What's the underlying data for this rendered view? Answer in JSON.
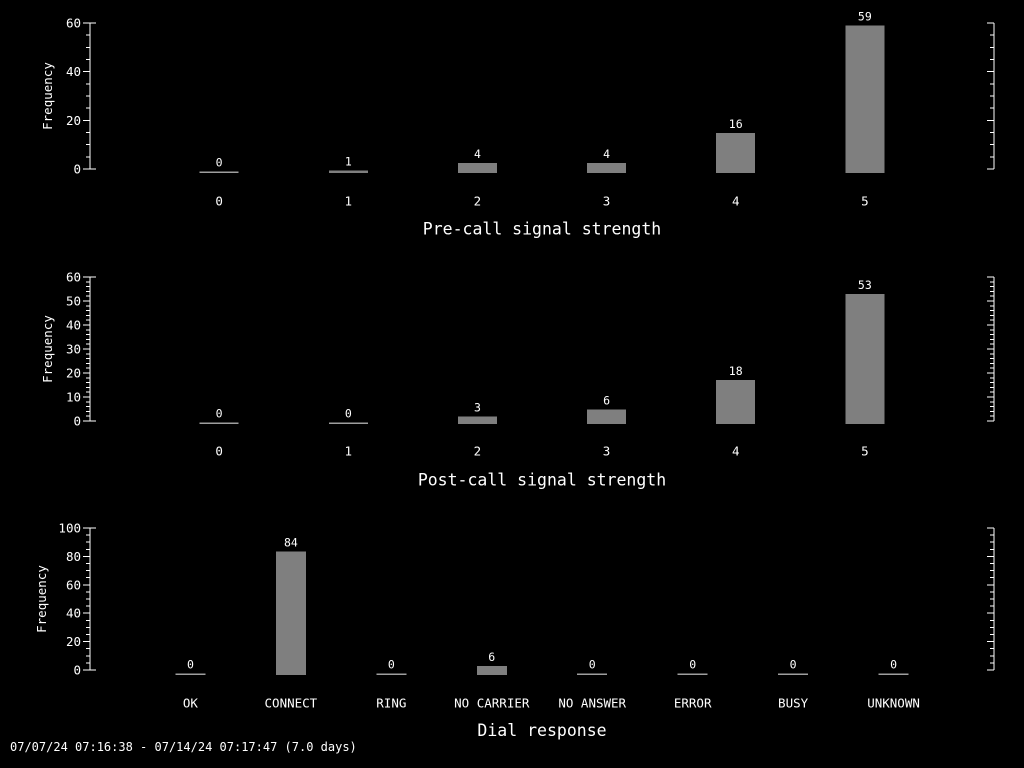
{
  "page": {
    "background": "#000000",
    "foreground": "#ffffff",
    "bar_color": "#7f7f7f",
    "zero_bar_color": "#9e9e9e"
  },
  "footer": {
    "text": "07/07/24 07:16:38 - 07/14/24 07:17:47 (7.0 days)"
  },
  "chart_data": [
    {
      "type": "bar",
      "title": "Pre-call signal strength",
      "ylabel": "Frequency",
      "categories": [
        "0",
        "1",
        "2",
        "3",
        "4",
        "5"
      ],
      "values": [
        0,
        1,
        4,
        4,
        16,
        59
      ],
      "bar_labels_shown": true,
      "ylim": [
        0,
        60
      ],
      "ytick_major_interval": 20,
      "ytick_minor_interval": 5,
      "grid": false,
      "legend": "none",
      "title_position": "below-x-axis"
    },
    {
      "type": "bar",
      "title": "Post-call signal strength",
      "ylabel": "Frequency",
      "categories": [
        "0",
        "1",
        "2",
        "3",
        "4",
        "5"
      ],
      "values": [
        0,
        0,
        3,
        6,
        18,
        53
      ],
      "bar_labels_shown": true,
      "ylim": [
        0,
        60
      ],
      "ytick_major_interval": 10,
      "ytick_minor_interval": 2,
      "grid": false,
      "legend": "none",
      "title_position": "below-x-axis"
    },
    {
      "type": "bar",
      "title": "Dial response",
      "ylabel": "Frequency",
      "categories": [
        "OK",
        "CONNECT",
        "RING",
        "NO CARRIER",
        "NO ANSWER",
        "ERROR",
        "BUSY",
        "UNKNOWN"
      ],
      "values": [
        0,
        84,
        0,
        6,
        0,
        0,
        0,
        0
      ],
      "bar_labels_shown": true,
      "ylim": [
        0,
        100
      ],
      "ytick_major_interval": 20,
      "ytick_minor_interval": 5,
      "grid": false,
      "legend": "none",
      "title_position": "below-x-axis"
    }
  ]
}
